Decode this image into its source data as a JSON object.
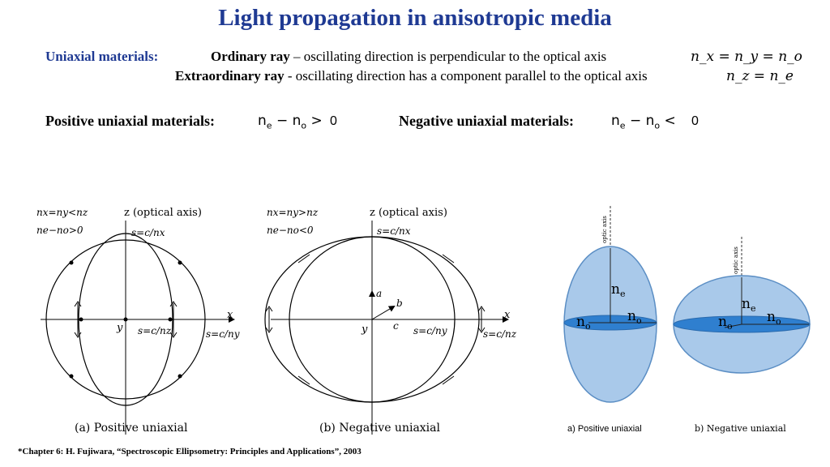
{
  "title": "Light propagation in anisotropic media",
  "uniaxial": {
    "label": "Uniaxial materials:",
    "ordinary_term": "Ordinary ray",
    "ordinary_text": " – oscillating direction is perpendicular to the optical axis",
    "ordinary_eq": "n_x = n_y = n_o",
    "extra_term": "Extraordinary ray",
    "extra_text": " - oscillating direction has a component parallel to the optical axis",
    "extra_eq": "n_z = n_e"
  },
  "positive": {
    "label": "Positive uniaxial materials:",
    "op": ">",
    "value": "0"
  },
  "negative": {
    "label": "Negative uniaxial materials:",
    "op": "<",
    "value": "0"
  },
  "figure_a": {
    "cond1": "nx=ny<nz",
    "cond2": "ne−no>0",
    "zlabel": "z (optical axis)",
    "s_top": "s=c/nx",
    "s_mid": "s=c/nz",
    "s_right": "s=c/ny",
    "xlabel": "x",
    "ylabel": "y",
    "caption": "(a) Positive uniaxial"
  },
  "figure_b": {
    "cond1": "nx=ny>nz",
    "cond2": "ne−no<0",
    "zlabel": "z (optical axis)",
    "s_top": "s=c/nx",
    "s_mid": "s=c/ny",
    "s_right": "s=c/nz",
    "xlabel": "x",
    "ylabel": "y",
    "a": "a",
    "b": "b",
    "c": "c",
    "caption": "(b) Negative uniaxial"
  },
  "ellipsoid_a": {
    "axis": "optic axis",
    "ne": "n",
    "ne_sub": "e",
    "no": "n",
    "no_sub": "o",
    "caption": "a) Positive uniaxial"
  },
  "ellipsoid_b": {
    "axis": "optic axis",
    "ne": "n",
    "ne_sub": "e",
    "no": "n",
    "no_sub": "o",
    "caption": "b) Negative uniaxial"
  },
  "colors": {
    "title": "#1f3a93",
    "ellipsoid_fill": "#a9c9ea",
    "ellipsoid_stroke": "#5b8ec4",
    "disk_fill": "#2f7fcf"
  },
  "footer": "*Chapter 6: H. Fujiwara, “Spectroscopic Ellipsometry: Principles and Applications”, 2003"
}
